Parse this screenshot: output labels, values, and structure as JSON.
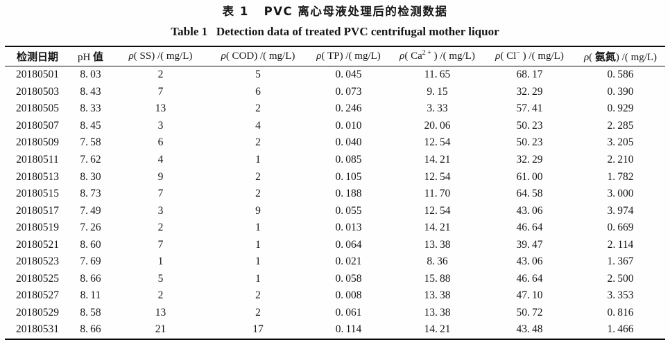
{
  "title": {
    "cn": "表 1   PVC 离心母液处理后的检测数据",
    "en": "Table 1   Detection data of treated PVC centrifugal mother liquor"
  },
  "table": {
    "headers": [
      {
        "name": "date",
        "segments": [
          {
            "t": "检测日期",
            "b": true
          }
        ]
      },
      {
        "name": "ph",
        "segments": [
          {
            "t": "pH "
          },
          {
            "t": "值",
            "b": true
          }
        ]
      },
      {
        "name": "ss",
        "segments": [
          {
            "t": "ρ",
            "i": true
          },
          {
            "t": "( SS) /( mg/L)"
          }
        ]
      },
      {
        "name": "cod",
        "segments": [
          {
            "t": "ρ",
            "i": true
          },
          {
            "t": "( COD) /( mg/L)"
          }
        ]
      },
      {
        "name": "tp",
        "segments": [
          {
            "t": "ρ",
            "i": true
          },
          {
            "t": "( TP) /( mg/L)"
          }
        ]
      },
      {
        "name": "ca",
        "segments": [
          {
            "t": "ρ",
            "i": true
          },
          {
            "t": "( Ca"
          },
          {
            "t": "2 +",
            "sup": true
          },
          {
            "t": " ) /( mg/L)"
          }
        ]
      },
      {
        "name": "cl",
        "segments": [
          {
            "t": "ρ",
            "i": true
          },
          {
            "t": "( Cl"
          },
          {
            "t": "−",
            "sup": true
          },
          {
            "t": " ) /( mg/L)"
          }
        ]
      },
      {
        "name": "ammonia",
        "segments": [
          {
            "t": "ρ",
            "i": true
          },
          {
            "t": "( "
          },
          {
            "t": "氨氮",
            "b": true
          },
          {
            "t": ") /( mg/L)"
          }
        ]
      }
    ],
    "rows": [
      [
        "20180501",
        "8.03",
        "2",
        "5",
        "0.045",
        "11.65",
        "68.17",
        "0.586"
      ],
      [
        "20180503",
        "8.43",
        "7",
        "6",
        "0.073",
        "9.15",
        "32.29",
        "0.390"
      ],
      [
        "20180505",
        "8.33",
        "13",
        "2",
        "0.246",
        "3.33",
        "57.41",
        "0.929"
      ],
      [
        "20180507",
        "8.45",
        "3",
        "4",
        "0.010",
        "20.06",
        "50.23",
        "2.285"
      ],
      [
        "20180509",
        "7.58",
        "6",
        "2",
        "0.040",
        "12.54",
        "50.23",
        "3.205"
      ],
      [
        "20180511",
        "7.62",
        "4",
        "1",
        "0.085",
        "14.21",
        "32.29",
        "2.210"
      ],
      [
        "20180513",
        "8.30",
        "9",
        "2",
        "0.105",
        "12.54",
        "61.00",
        "1.782"
      ],
      [
        "20180515",
        "8.73",
        "7",
        "2",
        "0.188",
        "11.70",
        "64.58",
        "3.000"
      ],
      [
        "20180517",
        "7.49",
        "3",
        "9",
        "0.055",
        "12.54",
        "43.06",
        "3.974"
      ],
      [
        "20180519",
        "7.26",
        "2",
        "1",
        "0.013",
        "14.21",
        "46.64",
        "0.669"
      ],
      [
        "20180521",
        "8.60",
        "7",
        "1",
        "0.064",
        "13.38",
        "39.47",
        "2.114"
      ],
      [
        "20180523",
        "7.69",
        "1",
        "1",
        "0.021",
        "8.36",
        "43.06",
        "1.367"
      ],
      [
        "20180525",
        "8.66",
        "5",
        "1",
        "0.058",
        "15.88",
        "46.64",
        "2.500"
      ],
      [
        "20180527",
        "8.11",
        "2",
        "2",
        "0.008",
        "13.38",
        "47.10",
        "3.353"
      ],
      [
        "20180529",
        "8.58",
        "13",
        "2",
        "0.061",
        "13.38",
        "50.72",
        "0.816"
      ],
      [
        "20180531",
        "8.66",
        "21",
        "17",
        "0.114",
        "14.21",
        "43.48",
        "1.466"
      ]
    ]
  }
}
